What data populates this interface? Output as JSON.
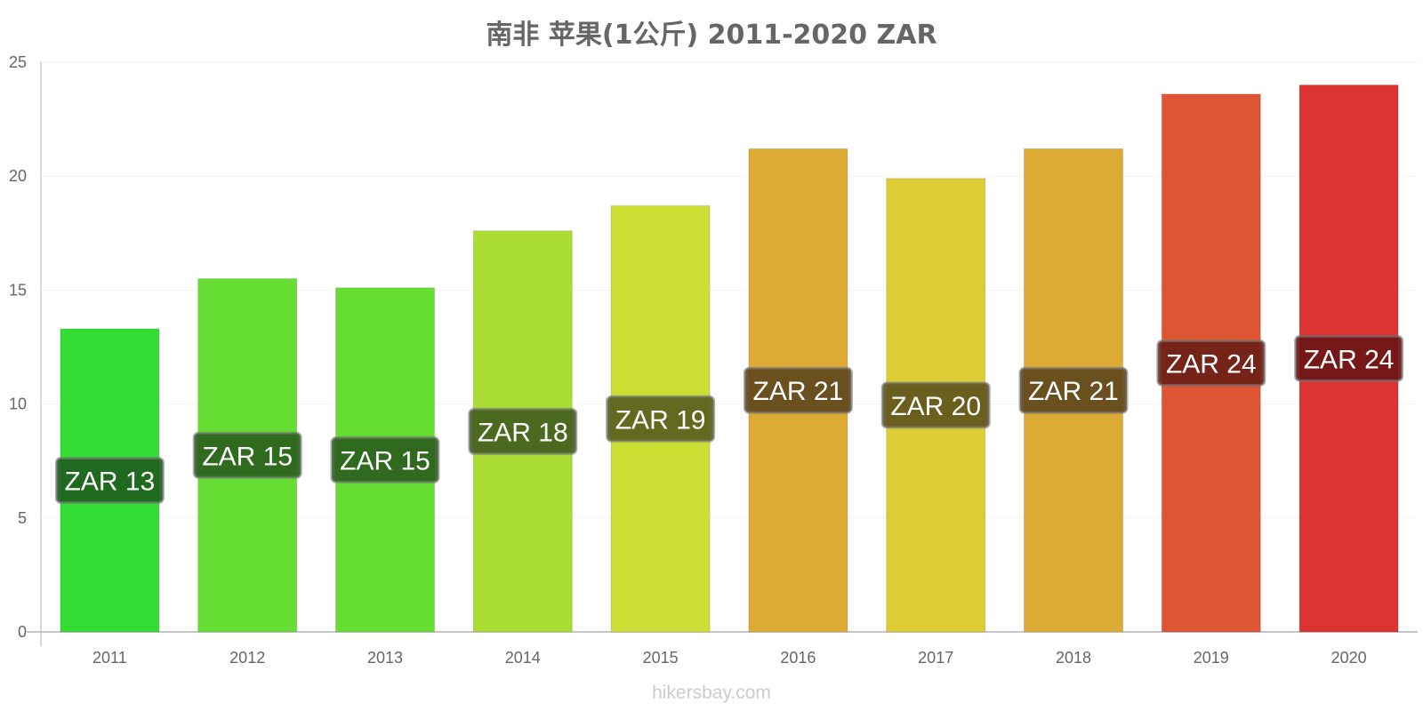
{
  "chart_data": {
    "type": "bar",
    "title": "南非 苹果(1公斤) 2011-2020 ZAR",
    "xlabel": "",
    "ylabel": "",
    "ylim": [
      0,
      25
    ],
    "yticks": [
      "0",
      "5",
      "10",
      "15",
      "20",
      "25"
    ],
    "categories": [
      "2011",
      "2012",
      "2013",
      "2014",
      "2015",
      "2016",
      "2017",
      "2018",
      "2019",
      "2020"
    ],
    "values": [
      13.3,
      15.5,
      15.1,
      17.6,
      18.7,
      21.2,
      19.9,
      21.2,
      23.6,
      24.0
    ],
    "data_labels": [
      "ZAR 13",
      "ZAR 15",
      "ZAR 15",
      "ZAR 18",
      "ZAR 19",
      "ZAR 21",
      "ZAR 20",
      "ZAR 21",
      "ZAR 24",
      "ZAR 24"
    ],
    "bar_colors": [
      "#33dd33",
      "#66dd33",
      "#66dd33",
      "#aadd33",
      "#ccdd33",
      "#ddaa33",
      "#ddcc33",
      "#ddaa33",
      "#dd5533",
      "#dd3333"
    ],
    "label_bg_colors": [
      "#1d5f1d",
      "#2a5f1d",
      "#2a5f1d",
      "#445f1d",
      "#585f1d",
      "#5f481d",
      "#5f561d",
      "#5f481d",
      "#6c1f16",
      "#6c1616"
    ],
    "grid": true,
    "legend": "none"
  },
  "watermark": "hikersbay.com"
}
